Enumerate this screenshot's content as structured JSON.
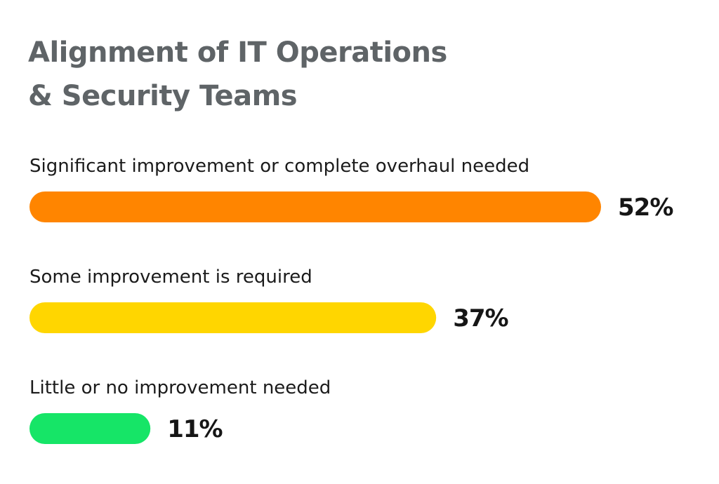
{
  "chart_data": {
    "type": "bar",
    "orientation": "horizontal",
    "title_lines": [
      "Alignment of IT Operations",
      "& Security Teams"
    ],
    "categories": [
      "Significant improvement or complete overhaul needed",
      "Some improvement is required",
      "Little or no improvement needed"
    ],
    "values": [
      52,
      37,
      11
    ],
    "value_labels": [
      "52%",
      "37%",
      "11%"
    ],
    "unit": "%",
    "colors": [
      "#ff8500",
      "#ffd600",
      "#16e567"
    ],
    "xlim": [
      0,
      52
    ],
    "grid": false,
    "legend": "none"
  }
}
